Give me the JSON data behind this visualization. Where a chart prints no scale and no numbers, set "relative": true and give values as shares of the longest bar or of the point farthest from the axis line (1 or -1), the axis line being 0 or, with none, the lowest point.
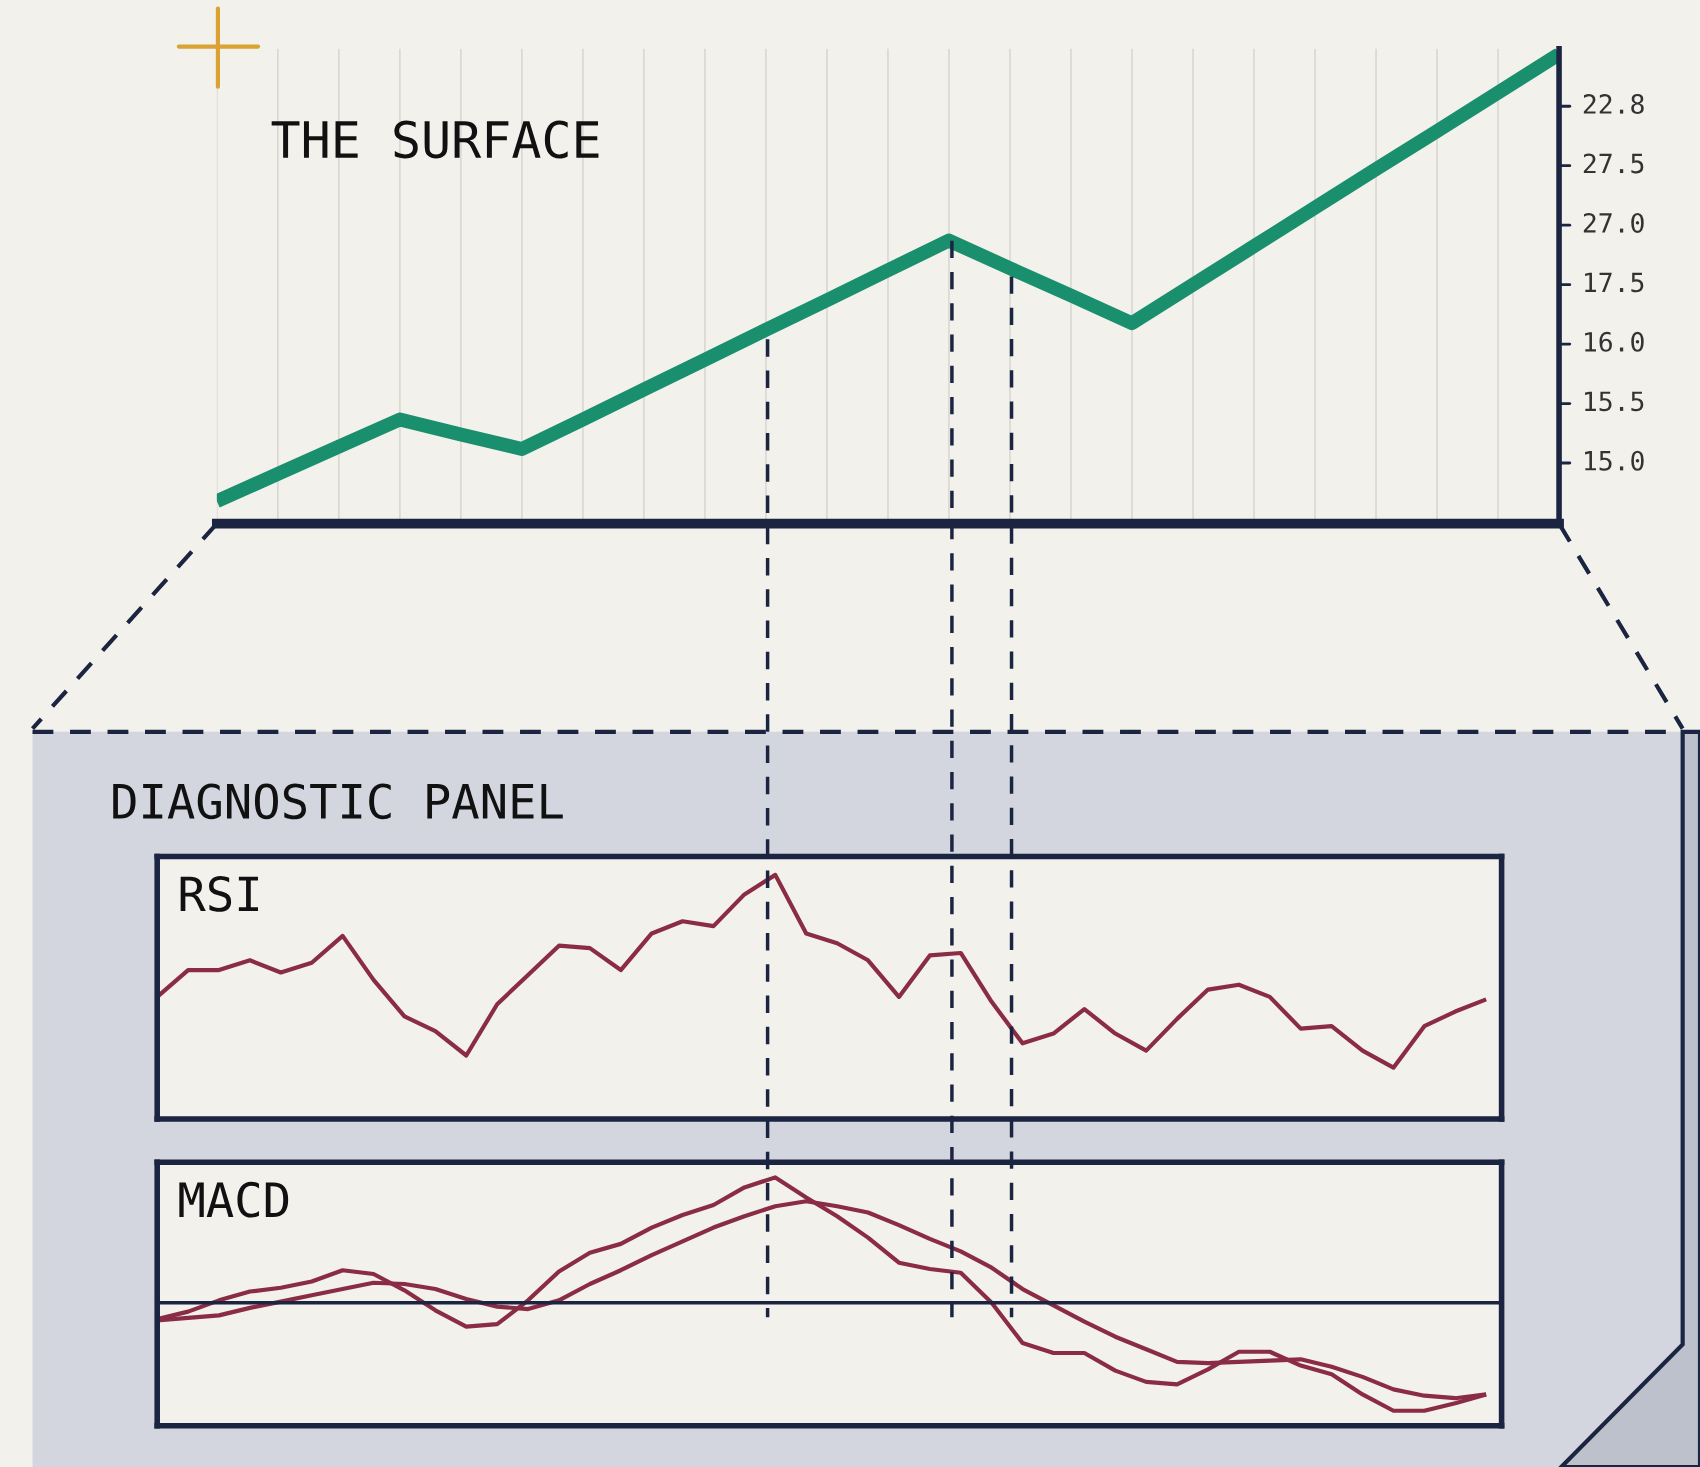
{
  "chart_data": [
    {
      "type": "line",
      "title": "THE SURFACE",
      "relative": true,
      "categories": [
        null,
        null,
        null,
        null,
        null,
        null,
        null,
        null,
        null,
        null,
        null,
        null,
        null,
        null,
        null,
        null,
        null,
        null,
        null,
        null,
        null,
        null,
        null
      ],
      "series": [
        {
          "color": "#1a8f6e",
          "values": [
            0.048,
            0.106,
            0.164,
            0.222,
            0.19,
            0.159,
            0.222,
            0.286,
            0.349,
            0.413,
            0.476,
            0.54,
            0.603,
            0.544,
            0.486,
            0.427,
            0.509,
            0.591,
            0.673,
            0.755,
            0.836,
            0.918,
            1
          ]
        }
      ],
      "annotations": [
        "22.8",
        "27.5",
        "27.0",
        "17.5",
        "16.0",
        "15.5",
        "15.0"
      ],
      "tick_labels": false,
      "grid": "x",
      "legend": false,
      "marker": "none",
      "line_style": "solid"
    },
    {
      "type": "other",
      "title": "DIAGNOSTIC PANEL"
    },
    {
      "type": "line",
      "title": "RSI",
      "relative": true,
      "tick_labels": false,
      "categories": [
        null,
        null,
        null,
        null,
        null,
        null,
        null,
        null,
        null,
        null,
        null,
        null,
        null,
        null,
        null,
        null,
        null,
        null,
        null,
        null,
        null,
        null,
        null,
        null,
        null,
        null,
        null,
        null,
        null,
        null,
        null,
        null,
        null,
        null,
        null,
        null,
        null,
        null,
        null,
        null,
        null,
        null,
        null,
        null
      ],
      "series": [
        {
          "color": "#8b2c45",
          "values": [
            0.5,
            0.61,
            0.61,
            0.65,
            0.6,
            0.64,
            0.75,
            0.57,
            0.42,
            0.36,
            0.26,
            0.47,
            0.59,
            0.71,
            0.7,
            0.61,
            0.76,
            0.81,
            0.79,
            0.92,
            1,
            0.76,
            0.72,
            0.65,
            0.5,
            0.67,
            0.68,
            0.48,
            0.31,
            0.35,
            0.45,
            0.35,
            0.28,
            0.41,
            0.53,
            0.55,
            0.5,
            0.37,
            0.38,
            0.28,
            0.21,
            0.38,
            0.44,
            0.49
          ]
        }
      ]
    },
    {
      "type": "line",
      "title": "MACD",
      "relative": true,
      "tick_labels": false,
      "categories": [
        null,
        null,
        null,
        null,
        null,
        null,
        null,
        null,
        null,
        null,
        null,
        null,
        null,
        null,
        null,
        null,
        null,
        null,
        null,
        null,
        null,
        null,
        null,
        null,
        null,
        null,
        null,
        null,
        null,
        null,
        null,
        null,
        null,
        null,
        null,
        null,
        null,
        null,
        null,
        null,
        null,
        null,
        null,
        null
      ],
      "series": [
        {
          "color": "#8b2c45",
          "values": [
            -0.13,
            -0.07,
            0.02,
            0.09,
            0.12,
            0.17,
            0.26,
            0.23,
            0.1,
            -0.06,
            -0.19,
            -0.17,
            0.02,
            0.25,
            0.4,
            0.47,
            0.6,
            0.7,
            0.78,
            0.92,
            1,
            0.84,
            0.69,
            0.52,
            0.32,
            0.27,
            0.24,
            0,
            -0.32,
            -0.4,
            -0.4,
            -0.54,
            -0.63,
            -0.65,
            -0.53,
            -0.39,
            -0.39,
            -0.5,
            -0.57,
            -0.73,
            -0.86,
            -0.86,
            -0.8,
            -0.73
          ]
        },
        {
          "color": "#8b2c45",
          "values": [
            -0.14,
            -0.12,
            -0.1,
            -0.04,
            0.01,
            0.06,
            0.11,
            0.16,
            0.15,
            0.11,
            0.03,
            -0.03,
            -0.05,
            0.02,
            0.15,
            0.26,
            0.38,
            0.49,
            0.6,
            0.69,
            0.77,
            0.81,
            0.77,
            0.72,
            0.62,
            0.51,
            0.41,
            0.28,
            0.11,
            -0.02,
            -0.15,
            -0.27,
            -0.37,
            -0.47,
            -0.48,
            -0.47,
            -0.46,
            -0.45,
            -0.51,
            -0.59,
            -0.69,
            -0.74,
            -0.76,
            -0.73
          ]
        }
      ]
    }
  ]
}
